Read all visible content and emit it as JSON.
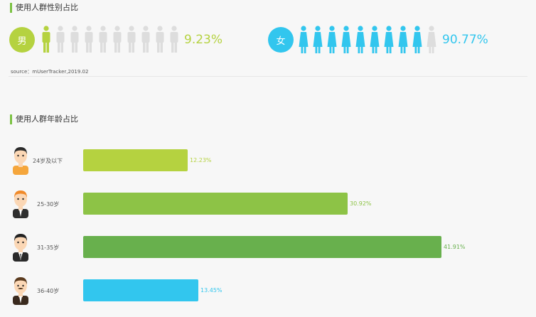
{
  "gender_section": {
    "title": "使用人群性别占比",
    "male": {
      "icon_label": "男",
      "percent_text": "9.23%",
      "color": "#b5d240",
      "inactive_color": "#dddddd",
      "filled_icons": 1,
      "total_icons": 10
    },
    "female": {
      "icon_label": "女",
      "percent_text": "90.77%",
      "color": "#32c6ee",
      "inactive_color": "#dddddd",
      "filled_icons": 9,
      "total_icons": 10
    },
    "source": "source：mUserTracker,2019.02"
  },
  "age_section": {
    "title": "使用人群年龄占比"
  },
  "chart_data": [
    {
      "type": "bar",
      "title": "使用人群性别占比",
      "categories": [
        "男",
        "女"
      ],
      "values": [
        9.23,
        90.77
      ],
      "data_labels": [
        "9.23%",
        "90.77%"
      ],
      "colors": [
        "#b5d240",
        "#32c6ee"
      ]
    },
    {
      "type": "bar",
      "title": "使用人群年龄占比",
      "orientation": "horizontal",
      "categories": [
        "24岁及以下",
        "25-30岁",
        "31-35岁",
        "36-40岁"
      ],
      "values": [
        12.23,
        30.92,
        41.91,
        13.45
      ],
      "data_labels": [
        "12.23%",
        "30.92%",
        "41.91%",
        "13.45%"
      ],
      "colors": [
        "#b5d240",
        "#8dc346",
        "#68b04d",
        "#32c6ee"
      ],
      "avatars": [
        "young-man-avatar",
        "orange-hair-man-avatar",
        "suit-man-avatar",
        "mustache-man-avatar"
      ]
    }
  ]
}
